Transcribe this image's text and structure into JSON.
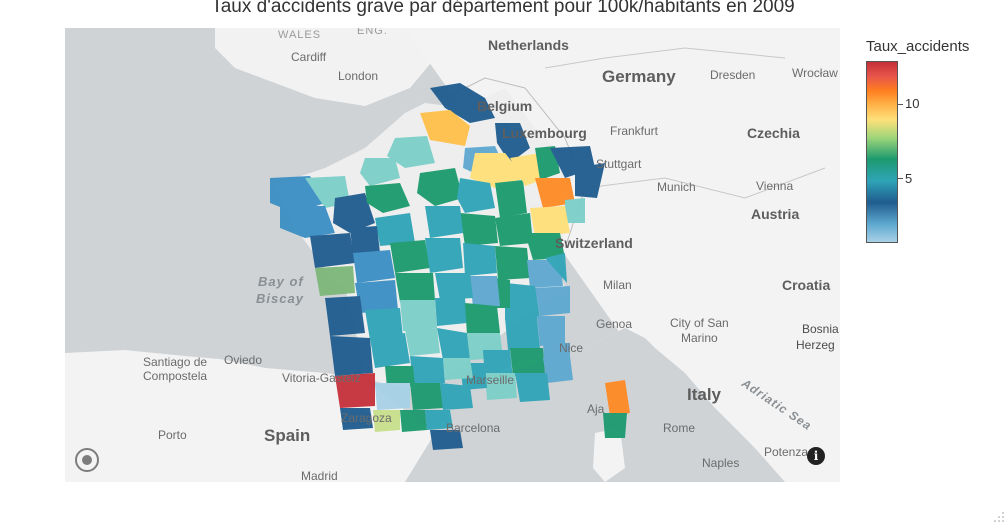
{
  "title": "Taux d'accidents grave par département pour 100k/habitants en 2009",
  "legend": {
    "title": "Taux_accidents",
    "ticks": [
      {
        "value": 10,
        "label": "10"
      },
      {
        "value": 5,
        "label": "5"
      }
    ],
    "range": [
      1.5,
      13.6
    ],
    "colorscale": [
      "#a8d1e6",
      "#5ea8d0",
      "#1f5c8f",
      "#2fa4b7",
      "#1c9a6e",
      "#9fd67a",
      "#ffe07a",
      "#ffb44a",
      "#ff7f1f",
      "#c5303a"
    ]
  },
  "map_labels": {
    "wales": "WALES",
    "eng": "ENG.",
    "netherlands": "Netherlands",
    "cardiff": "Cardiff",
    "london": "London",
    "germany": "Germany",
    "dresden": "Dresden",
    "wroclaw": "Wrocław",
    "belgium": "Belgium",
    "luxembourg": "Luxembourg",
    "frankfurt": "Frankfurt",
    "czechia": "Czechia",
    "stuttgart": "Stuttgart",
    "munich": "Munich",
    "vienna": "Vienna",
    "austria": "Austria",
    "switzerland": "Switzerland",
    "bay_of_biscay_1": "Bay of",
    "bay_of_biscay_2": "Biscay",
    "milan": "Milan",
    "croatia": "Croatia",
    "genoa": "Genoa",
    "city_of_san_marino_1": "City of San",
    "city_of_san_marino_2": "Marino",
    "bosnia_1": "Bosnia",
    "bosnia_2": "Herzeg",
    "nice": "Nice",
    "santiago_1": "Santiago de",
    "santiago_2": "Compostela",
    "oviedo": "Oviedo",
    "vitoria": "Vitoria-Gasteiz",
    "marseille": "Marseille",
    "adriatic_sea": "Adriatic Sea",
    "italy": "Italy",
    "ajaccio": "Aja",
    "zaragoza": "Zaragoza",
    "barcelona": "Barcelona",
    "spain": "Spain",
    "porto": "Porto",
    "rome": "Rome",
    "madrid": "Madrid",
    "naples": "Naples",
    "potenza": "Potenza",
    "info_glyph": "i"
  }
}
